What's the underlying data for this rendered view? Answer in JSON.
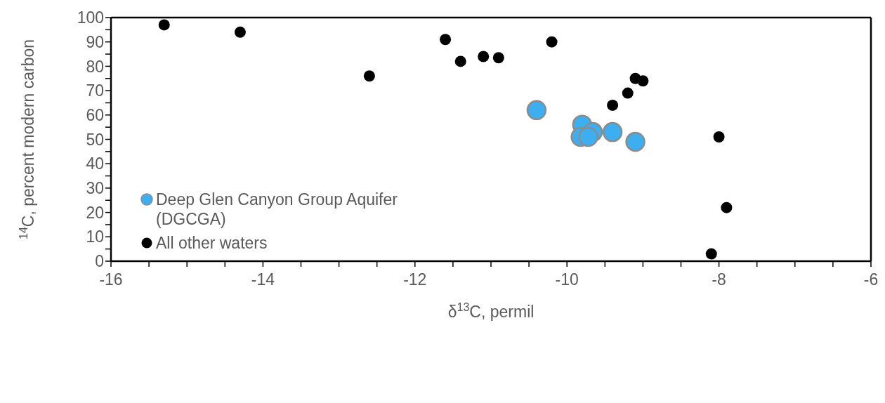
{
  "chart_data": {
    "type": "scatter",
    "xlabel": "δ$^{13}$C, permil",
    "ylabel": "$^{14}$C, percent modern carbon",
    "xlim": [
      -16,
      -6
    ],
    "ylim": [
      0,
      100
    ],
    "xticks": [
      -16,
      {
        "value": -15.5,
        "label": null
      },
      {
        "value": -15,
        "label": null
      },
      {
        "value": -14.5,
        "label": null
      },
      -14,
      {
        "value": -13.5,
        "label": null
      },
      {
        "value": -13,
        "label": null
      },
      {
        "value": -12.5,
        "label": null
      },
      -12,
      {
        "value": -11.5,
        "label": null
      },
      {
        "value": -11,
        "label": null
      },
      {
        "value": -10.5,
        "label": null
      },
      -10,
      {
        "value": -9.5,
        "label": null
      },
      {
        "value": -9,
        "label": null
      },
      {
        "value": -8.5,
        "label": null
      },
      -8,
      {
        "value": -7.5,
        "label": null
      },
      {
        "value": -7,
        "label": null
      },
      {
        "value": -6.5,
        "label": null
      },
      -6
    ],
    "yticks": [
      0,
      {
        "value": 5,
        "label": null
      },
      10,
      {
        "value": 15,
        "label": null
      },
      20,
      {
        "value": 25,
        "label": null
      },
      30,
      {
        "value": 35,
        "label": null
      },
      40,
      {
        "value": 45,
        "label": null
      },
      50,
      {
        "value": 55,
        "label": null
      },
      60,
      {
        "value": 65,
        "label": null
      },
      70,
      {
        "value": 75,
        "label": null
      },
      80,
      {
        "value": 85,
        "label": null
      },
      90,
      {
        "value": 95,
        "label": null
      },
      100
    ],
    "legend": "bottom left",
    "marker": "circle",
    "series": [
      {
        "name": "Deep Glen Canyon Group Aquifer (DGCGA)",
        "color": "#3daef0",
        "x": [
          -10.4,
          -9.8,
          -9.82,
          -9.66,
          -9.72,
          -9.4,
          -9.1
        ],
        "values": [
          62,
          56,
          51,
          53,
          51,
          53,
          49
        ]
      },
      {
        "name": "All other waters",
        "color": "#000000",
        "x": [
          -15.3,
          -14.3,
          -12.6,
          -11.6,
          -11.4,
          -11.1,
          -10.9,
          -10.2,
          -9.4,
          -9.2,
          -9.1,
          -9.0,
          -8.0,
          -7.9,
          -8.1
        ],
        "values": [
          97,
          94,
          76,
          91,
          82,
          84,
          83.5,
          90,
          64,
          69,
          75,
          74,
          51,
          22,
          3
        ]
      }
    ]
  }
}
